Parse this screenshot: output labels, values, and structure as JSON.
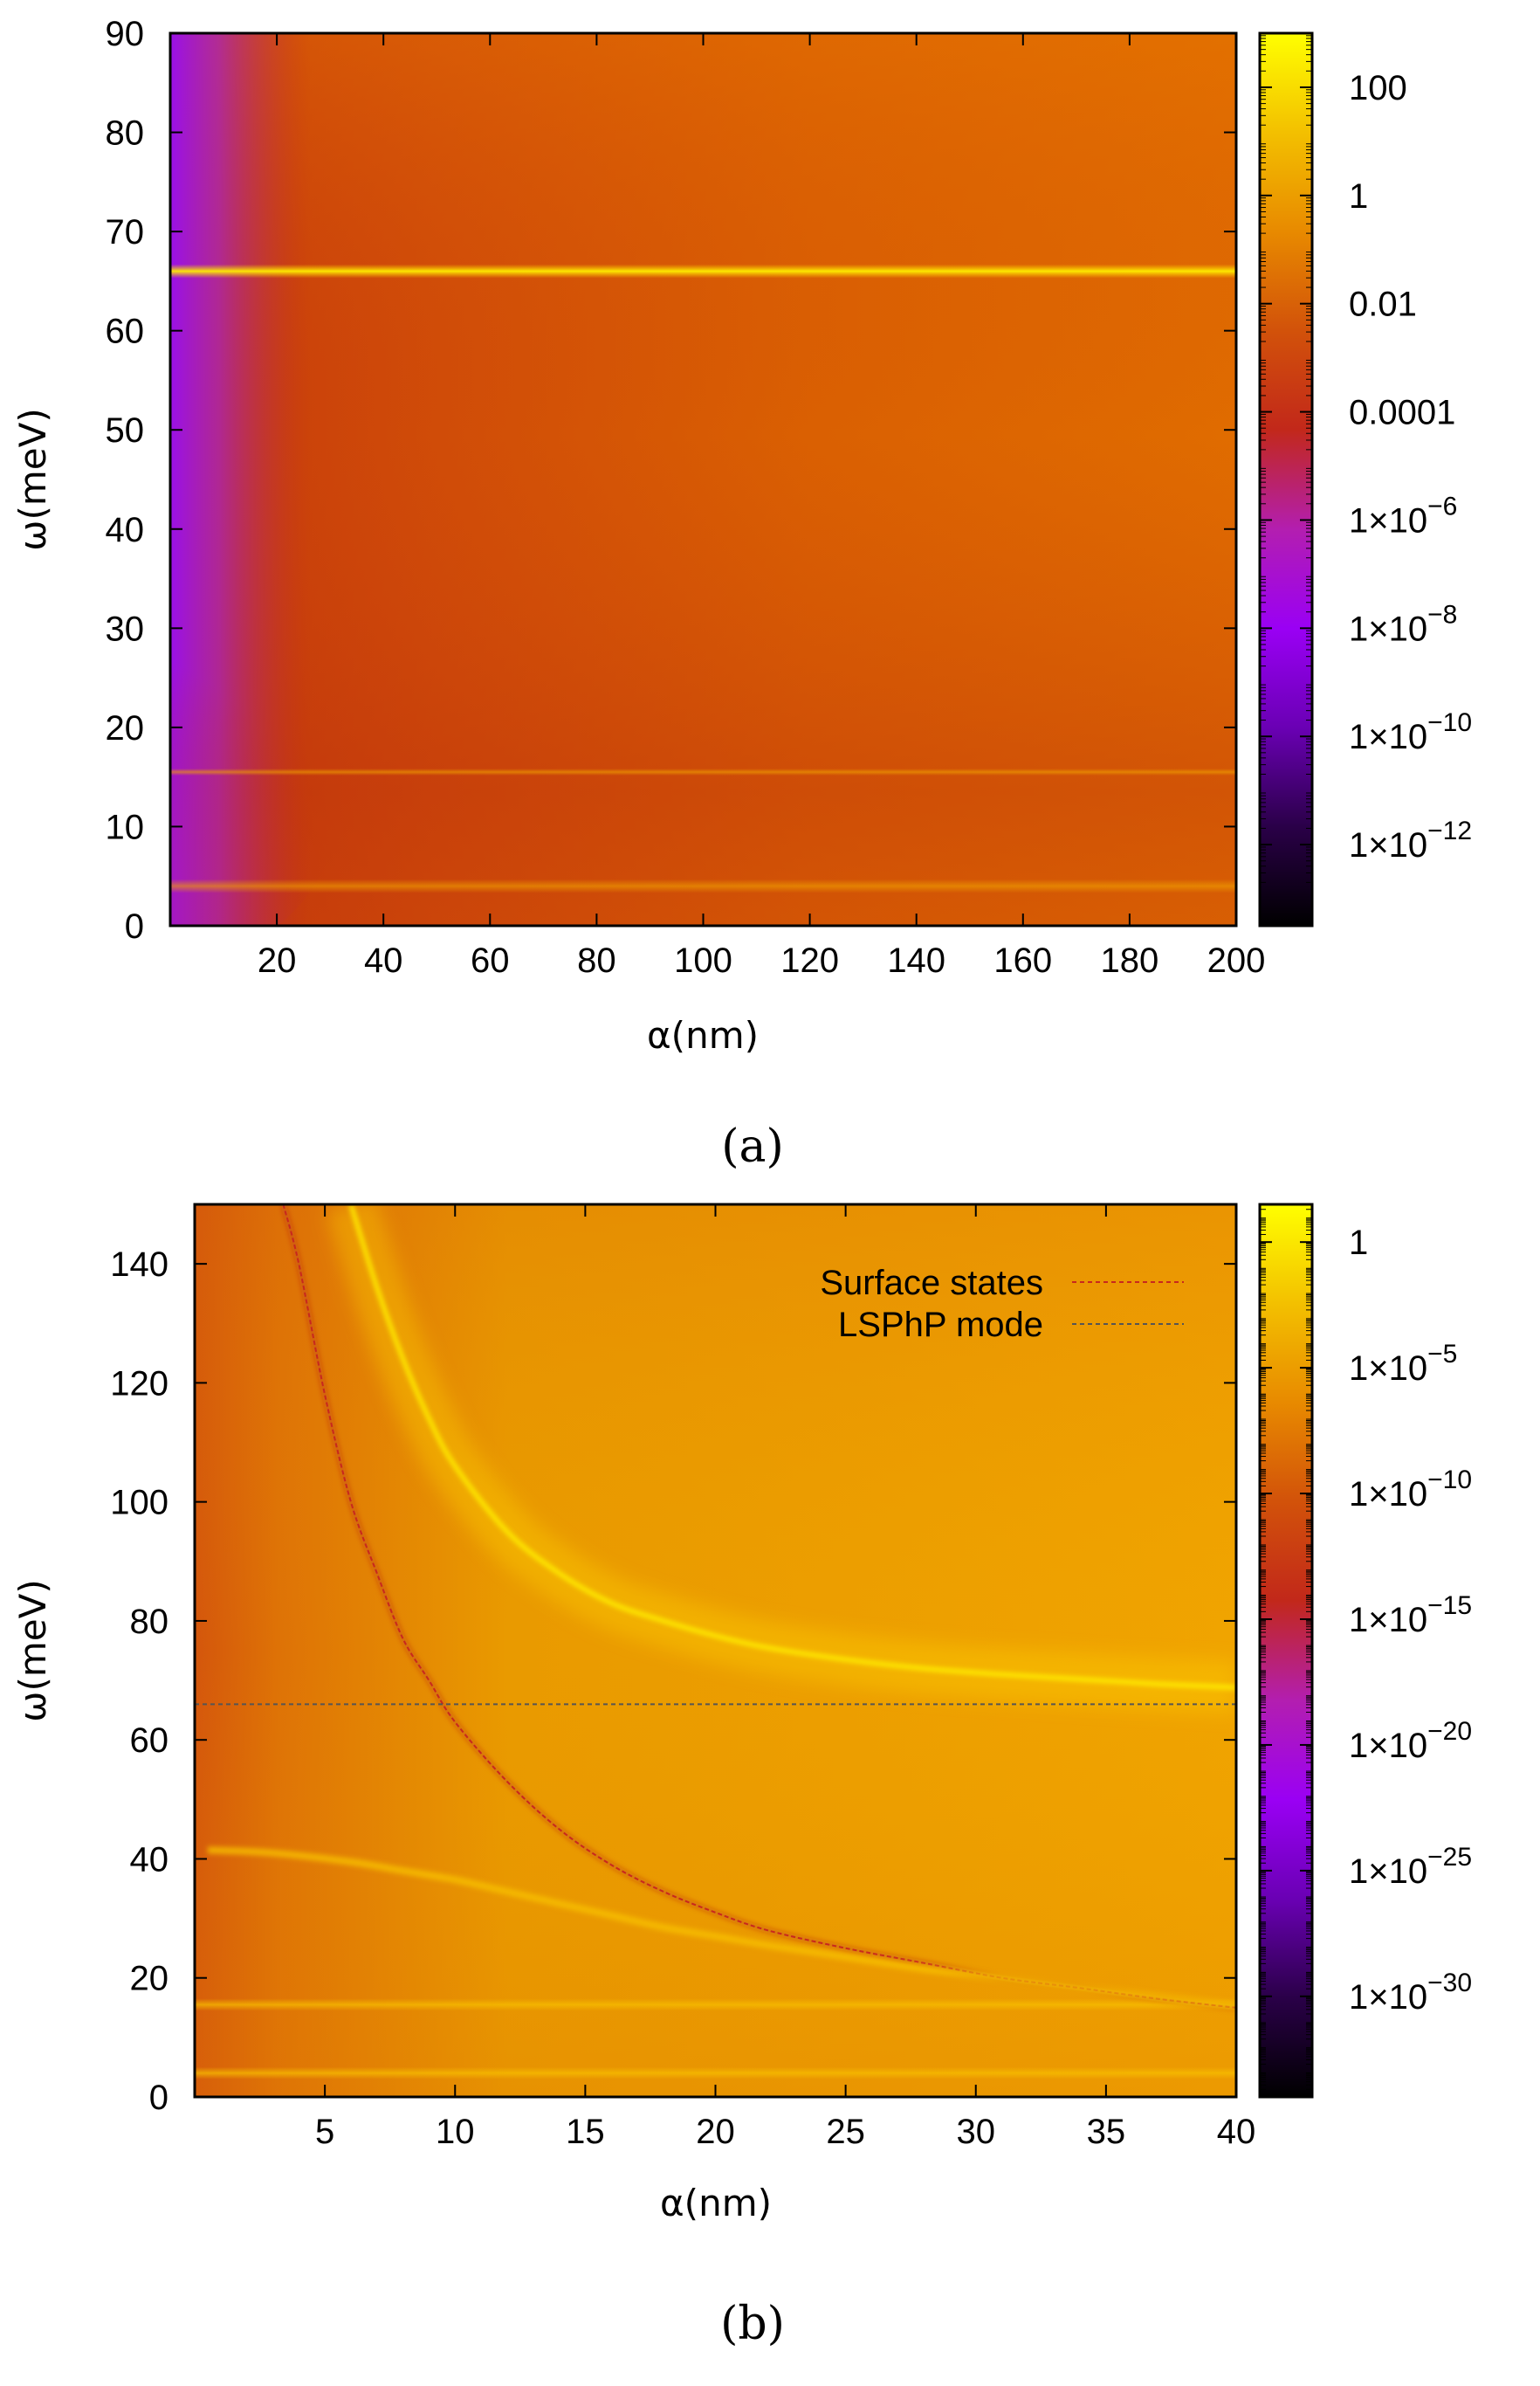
{
  "colors": {
    "colormap": [
      "#000000",
      "#2a0048",
      "#6a00b4",
      "#9a00f4",
      "#b31eb0",
      "#c2281a",
      "#d2520a",
      "#e88a00",
      "#f3c000",
      "#ffff00"
    ],
    "surface_states_line": "#c8281e",
    "lsphp_line": "#555555",
    "frame": "#000000"
  },
  "chart_data": [
    {
      "type": "heatmap",
      "panel_label": "(a)",
      "xlabel": "α(nm)",
      "ylabel": "ω(meV)",
      "xlim": [
        0,
        200
      ],
      "ylim": [
        0,
        90
      ],
      "xticks": [
        20,
        40,
        60,
        80,
        100,
        120,
        140,
        160,
        180,
        200
      ],
      "xtick_labels": [
        "20",
        "40",
        "60",
        "80",
        "100",
        "120",
        "140",
        "160",
        "180",
        "200"
      ],
      "yticks": [
        0,
        10,
        20,
        30,
        40,
        50,
        60,
        70,
        80,
        90
      ],
      "ytick_labels": [
        "0",
        "10",
        "20",
        "30",
        "40",
        "50",
        "60",
        "70",
        "80",
        "90"
      ],
      "colorbar": {
        "scale": "log",
        "range_log10": [
          -13.5,
          3
        ],
        "ticks_log10": [
          2,
          0,
          -2,
          -4,
          -6,
          -8,
          -10,
          -12
        ],
        "tick_labels": [
          {
            "base": "100",
            "exp": ""
          },
          {
            "base": "1",
            "exp": ""
          },
          {
            "base": "0.01",
            "exp": ""
          },
          {
            "base": "0.0001",
            "exp": ""
          },
          {
            "base": "1×10",
            "exp": "−6"
          },
          {
            "base": "1×10",
            "exp": "−8"
          },
          {
            "base": "1×10",
            "exp": "−10"
          },
          {
            "base": "1×10",
            "exp": "−12"
          }
        ]
      },
      "features": [
        {
          "kind": "horizontal_resonance",
          "omega_meV": 66,
          "description": "bright band"
        },
        {
          "kind": "horizontal_resonance",
          "omega_meV": 15.5,
          "description": "faint band"
        },
        {
          "kind": "horizontal_resonance",
          "omega_meV": 4,
          "description": "band"
        },
        {
          "kind": "low_alpha_region",
          "alpha_max_nm": 25,
          "description": "purple low-intensity region"
        }
      ]
    },
    {
      "type": "heatmap",
      "panel_label": "(b)",
      "xlabel": "α(nm)",
      "ylabel": "ω(meV)",
      "xlim": [
        0,
        40
      ],
      "ylim": [
        0,
        150
      ],
      "xticks": [
        5,
        10,
        15,
        20,
        25,
        30,
        35,
        40
      ],
      "xtick_labels": [
        "5",
        "10",
        "15",
        "20",
        "25",
        "30",
        "35",
        "40"
      ],
      "yticks": [
        0,
        20,
        40,
        60,
        80,
        100,
        120,
        140
      ],
      "ytick_labels": [
        "0",
        "20",
        "40",
        "60",
        "80",
        "100",
        "120",
        "140"
      ],
      "colorbar": {
        "scale": "log",
        "range_log10": [
          -34,
          1.5
        ],
        "ticks_log10": [
          0,
          -5,
          -10,
          -15,
          -20,
          -25,
          -30
        ],
        "tick_labels": [
          {
            "base": "1",
            "exp": ""
          },
          {
            "base": "1×10",
            "exp": "−5"
          },
          {
            "base": "1×10",
            "exp": "−10"
          },
          {
            "base": "1×10",
            "exp": "−15"
          },
          {
            "base": "1×10",
            "exp": "−20"
          },
          {
            "base": "1×10",
            "exp": "−25"
          },
          {
            "base": "1×10",
            "exp": "−30"
          }
        ]
      },
      "legend": {
        "position": "top-right",
        "entries": [
          {
            "label": "Surface states",
            "style": "dashed",
            "color": "#c8281e"
          },
          {
            "label": "LSPhP mode",
            "style": "dashed",
            "color": "#555555"
          }
        ]
      },
      "series": [
        {
          "name": "Surface states",
          "x": [
            3.4,
            4,
            5,
            6,
            7,
            8,
            9,
            10,
            12,
            14,
            16,
            18,
            20,
            22,
            25,
            28,
            31,
            34,
            37,
            40
          ],
          "y": [
            150,
            140,
            118,
            100,
            88,
            77,
            70,
            63,
            53,
            45,
            39,
            34.5,
            31,
            28,
            25,
            22.5,
            20,
            18.3,
            16.5,
            15
          ]
        },
        {
          "name": "Bright upper mode",
          "x": [
            6,
            7,
            8,
            9,
            10,
            12,
            14,
            16,
            18,
            20,
            22,
            25,
            28,
            31,
            34,
            37,
            40
          ],
          "y": [
            150,
            136,
            124,
            114,
            106,
            95,
            88,
            83,
            80,
            77.5,
            75.5,
            73.5,
            72,
            71,
            70.2,
            69.4,
            68.8
          ]
        },
        {
          "name": "Lower mode",
          "x": [
            0.5,
            3,
            6,
            8,
            10,
            12,
            14,
            16,
            18,
            20,
            22,
            25,
            28,
            31,
            34,
            37,
            40
          ],
          "y": [
            41.5,
            41,
            39.5,
            38,
            36.5,
            34.5,
            32.5,
            30.5,
            28.5,
            27,
            25.5,
            23.5,
            21.5,
            20,
            18.3,
            16.8,
            15.3
          ]
        },
        {
          "name": "LSPhP mode",
          "x": [
            0,
            40
          ],
          "y": [
            66,
            66
          ]
        }
      ],
      "features": [
        {
          "kind": "horizontal_resonance",
          "omega_meV": 15.5
        },
        {
          "kind": "horizontal_resonance",
          "omega_meV": 4
        }
      ]
    }
  ]
}
